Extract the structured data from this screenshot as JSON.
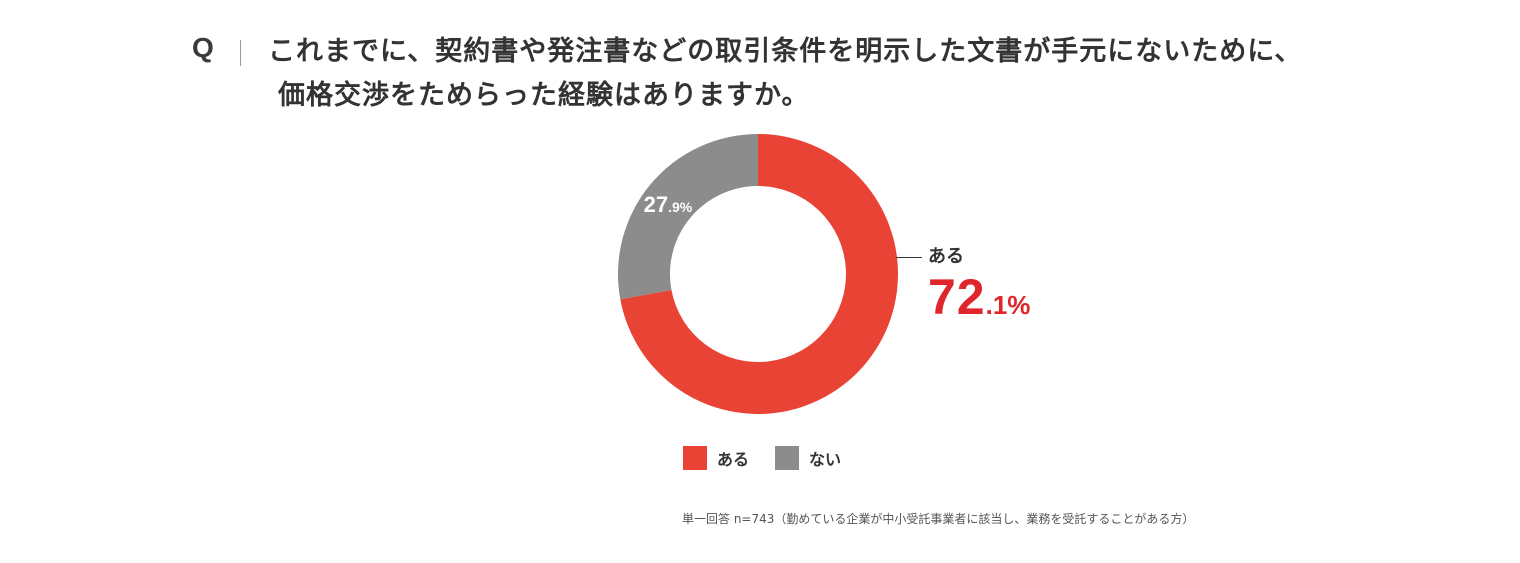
{
  "question": {
    "marker": "Q",
    "line1": "これまでに、契約書や発注書などの取引条件を明示した文書が手元にないために、",
    "line2": "価格交渉をためらった経験はありますか。"
  },
  "chart_data": {
    "type": "pie",
    "donut": true,
    "start_angle_deg": 0,
    "direction": "clockwise",
    "series": [
      {
        "name": "ある",
        "value": 72.1,
        "color": "#e84335",
        "label_int": "72",
        "label_dec": ".1%"
      },
      {
        "name": "ない",
        "value": 27.9,
        "color": "#8c8c8c",
        "label_int": "27",
        "label_dec": ".9%"
      }
    ],
    "legend": [
      "ある",
      "ない"
    ],
    "legend_placement": "bottom"
  },
  "callout": {
    "label": "ある",
    "value_int": "72",
    "value_dec": ".1%",
    "color": "#e0262c"
  },
  "footnote": "単一回答 n=743（勤めている企業が中小受託事業者に該当し、業務を受託することがある方）"
}
